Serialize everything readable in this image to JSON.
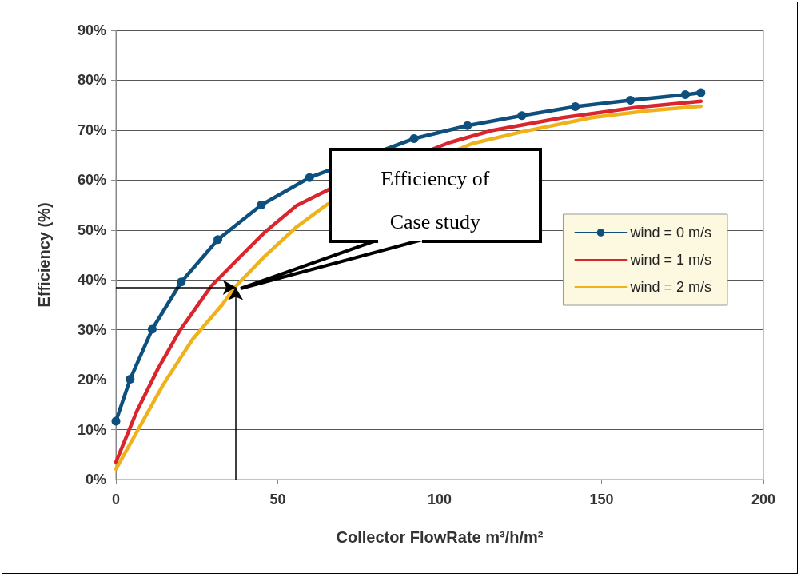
{
  "chart_data": {
    "type": "line",
    "xlabel": "Collector FlowRate m³/h/m²",
    "ylabel": "Efficiency (%)",
    "xlim": [
      0,
      200
    ],
    "xticks": [
      0,
      50,
      100,
      150,
      200
    ],
    "ylim": [
      0,
      90
    ],
    "yticks": [
      {
        "value": 0,
        "label": "0%"
      },
      {
        "value": 10,
        "label": "10%"
      },
      {
        "value": 20,
        "label": "20%"
      },
      {
        "value": 30,
        "label": "30%"
      },
      {
        "value": 40,
        "label": "40%"
      },
      {
        "value": 50,
        "label": "50%"
      },
      {
        "value": 60,
        "label": "60%"
      },
      {
        "value": 70,
        "label": "70%"
      },
      {
        "value": 80,
        "label": "80%"
      },
      {
        "value": 90,
        "label": "90%"
      }
    ],
    "grid": "y",
    "legend": "right",
    "line_style": "solid",
    "annotations": [
      {
        "text": "Efficiency of Case study",
        "x": 37,
        "y": 38.5
      }
    ],
    "series": [
      {
        "name": "wind = 0 m/s",
        "color": "#0d4f7d",
        "marker": "circle",
        "x": [
          0,
          4.4,
          11.2,
          20.2,
          31.5,
          44.9,
          59.8,
          92.1,
          108.6,
          125.4,
          141.9,
          158.9,
          175.9,
          180.7
        ],
        "values": [
          11.7,
          20.1,
          30.1,
          39.6,
          48.1,
          55.0,
          60.5,
          68.3,
          70.9,
          72.9,
          74.7,
          76.0,
          77.1,
          77.5
        ]
      },
      {
        "name": "wind = 1 m/s",
        "color": "#d9262e",
        "marker": "none",
        "x": [
          0,
          6.4,
          13,
          19.6,
          29.5,
          37.7,
          45.9,
          55.8,
          65.7,
          103,
          116,
          138,
          160.2,
          180.7
        ],
        "values": [
          3.5,
          13.6,
          22.2,
          29.7,
          38.8,
          44.2,
          49.5,
          54.9,
          58.1,
          67.5,
          69.9,
          72.5,
          74.5,
          75.8
        ]
      },
      {
        "name": "wind = 2 m/s",
        "color": "#efb21a",
        "marker": "none",
        "x": [
          0,
          7.2,
          14.6,
          23.7,
          32.8,
          36.8,
          45.9,
          55.8,
          65.2,
          110,
          125,
          146.9,
          164.6,
          180.7
        ],
        "values": [
          2.1,
          10.4,
          19,
          28.1,
          35,
          38.6,
          44.7,
          50.6,
          55.1,
          67.3,
          69.6,
          72.5,
          73.9,
          74.8
        ]
      }
    ]
  }
}
